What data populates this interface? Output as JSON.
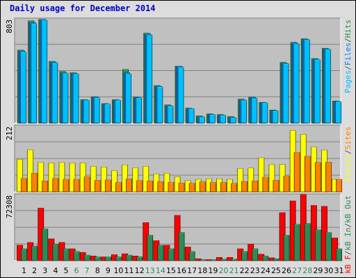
{
  "chart_data": {
    "type": "bar",
    "title": "Daily usage for December 2014",
    "categories": [
      "1",
      "2",
      "3",
      "4",
      "5",
      "6",
      "7",
      "8",
      "9",
      "10",
      "11",
      "12",
      "13",
      "14",
      "15",
      "16",
      "17",
      "18",
      "19",
      "20",
      "21",
      "22",
      "23",
      "24",
      "25",
      "26",
      "27",
      "28",
      "29",
      "30",
      "31"
    ],
    "weekend_days": [
      "6",
      "7",
      "13",
      "14",
      "20",
      "21",
      "27",
      "28"
    ],
    "panels": [
      {
        "id": "hits",
        "ymax_label": "803",
        "ylim": [
          0,
          803
        ],
        "grid": true,
        "legend": [
          "Pages",
          "/",
          "Files",
          "/",
          "Hits"
        ],
        "legend_colors": [
          "#00c0ff",
          "#505050",
          "#0080ff",
          "#505050",
          "#2e8b57"
        ],
        "series": [
          {
            "name": "Hits",
            "color": "#2e8b57",
            "values": [
              565,
              792,
              803,
              478,
              400,
              390,
              180,
              203,
              150,
              180,
              415,
              200,
              696,
              290,
              140,
              440,
              115,
              55,
              70,
              65,
              50,
              185,
              200,
              160,
              100,
              470,
              625,
              653,
              500,
              579,
              170
            ]
          },
          {
            "name": "Files",
            "color": "#0080ff",
            "values": [
              560,
              780,
              803,
              472,
              390,
              385,
              180,
              200,
              148,
              178,
              390,
              198,
              690,
              285,
              135,
              440,
              112,
              50,
              68,
              62,
              45,
              180,
              198,
              158,
              98,
              465,
              620,
              650,
              495,
              575,
              168
            ]
          },
          {
            "name": "Pages",
            "color": "#00c0ff",
            "values": [
              550,
              770,
              795,
              465,
              385,
              380,
              175,
              195,
              145,
              175,
              380,
              195,
              680,
              280,
              130,
              430,
              110,
              45,
              65,
              60,
              40,
              175,
              190,
              155,
              95,
              460,
              610,
              645,
              490,
              570,
              165
            ]
          }
        ]
      },
      {
        "id": "visits",
        "ymax_label": "212",
        "ylim": [
          0,
          212
        ],
        "grid": true,
        "legend": [
          "Visits",
          "/",
          "Sites"
        ],
        "legend_colors": [
          "#ffff00",
          "#505050",
          "#ff8000"
        ],
        "series": [
          {
            "name": "Visits",
            "color": "#ffff00",
            "values": [
              105,
              136,
              95,
              93,
              95,
              93,
              93,
              82,
              80,
              68,
              87,
              78,
              82,
              57,
              60,
              48,
              36,
              40,
              42,
              42,
              40,
              75,
              77,
              110,
              88,
              88,
              199,
              186,
              145,
              135,
              40
            ]
          },
          {
            "name": "Sites",
            "color": "#ff8000",
            "values": [
              43,
              60,
              35,
              43,
              40,
              40,
              48,
              37,
              38,
              30,
              42,
              36,
              35,
              33,
              30,
              28,
              27,
              32,
              30,
              30,
              27,
              33,
              35,
              47,
              37,
              50,
              127,
              115,
              95,
              96,
              40
            ]
          }
        ]
      },
      {
        "id": "kbytes",
        "ymax_label": "72308",
        "ylim": [
          0,
          72308
        ],
        "grid": true,
        "legend": [
          "kB F",
          "/",
          "kB In",
          "/",
          "kB Out"
        ],
        "legend_colors": [
          "#ff0000",
          "#505050",
          "#2e8b57",
          "#505050",
          "#2e8b57"
        ],
        "series": [
          {
            "name": "kB F",
            "color": "#ff0000",
            "values": [
              17000,
              20000,
              58000,
              24000,
              20000,
              13000,
              9000,
              5000,
              4000,
              6500,
              7500,
              5000,
              42000,
              22000,
              17000,
              50000,
              15000,
              2000,
              1000,
              3500,
              3500,
              13000,
              18000,
              7000,
              3000,
              53000,
              66000,
              73000,
              61000,
              60000,
              25000
            ]
          },
          {
            "name": "kB Out",
            "color": "#2e8b57",
            "values": [
              13000,
              16000,
              35000,
              18000,
              13000,
              10000,
              6000,
              4000,
              4000,
              4000,
              6000,
              4000,
              28000,
              17000,
              13000,
              31000,
              10000,
              1000,
              1000,
              1500,
              1500,
              10000,
              13000,
              5000,
              2000,
              28000,
              40000,
              41000,
              34000,
              31000,
              13000
            ]
          }
        ]
      }
    ]
  }
}
